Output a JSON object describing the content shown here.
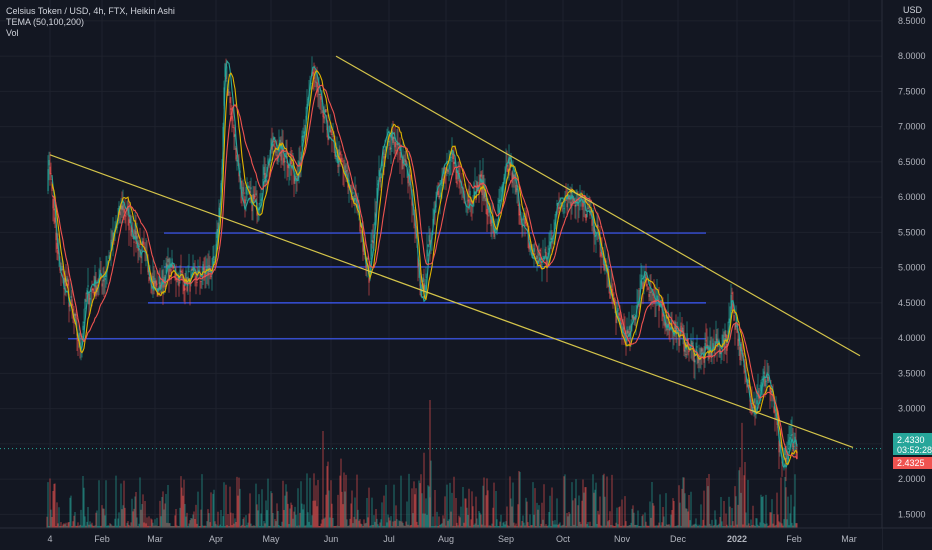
{
  "legend": {
    "symbol": "Celsius Token / USD, 4h, FTX, Heikin Ashi",
    "indicator": "TEMA (50,100,200)",
    "volume": "Vol"
  },
  "currency_label": "USD",
  "chart_data": {
    "type": "candlestick",
    "price_axis": {
      "range": [
        1.25,
        8.55
      ],
      "ticks": [
        "1.5000",
        "2.0000",
        "2.5000",
        "3.0000",
        "3.5000",
        "4.0000",
        "4.5000",
        "5.0000",
        "5.5000",
        "6.0000",
        "6.5000",
        "7.0000",
        "7.5000",
        "8.0000",
        "8.5000"
      ]
    },
    "time_axis": {
      "labels": [
        "4",
        "Feb",
        "Mar",
        "Apr",
        "May",
        "Jun",
        "Jul",
        "Aug",
        "Sep",
        "Oct",
        "Nov",
        "Dec",
        "2022",
        "Feb",
        "Mar"
      ],
      "bold_label": "2022"
    },
    "price_path": [
      [
        0,
        5.9
      ],
      [
        2,
        6.6
      ],
      [
        10,
        5.2
      ],
      [
        20,
        4.7
      ],
      [
        28,
        4.2
      ],
      [
        33,
        3.9
      ],
      [
        40,
        4.6
      ],
      [
        58,
        4.9
      ],
      [
        75,
        5.9
      ],
      [
        90,
        5.4
      ],
      [
        110,
        4.7
      ],
      [
        122,
        5.0
      ],
      [
        140,
        4.8
      ],
      [
        168,
        5.0
      ],
      [
        175,
        6.4
      ],
      [
        178,
        7.9
      ],
      [
        185,
        7.1
      ],
      [
        195,
        6.1
      ],
      [
        210,
        5.9
      ],
      [
        225,
        6.7
      ],
      [
        240,
        6.6
      ],
      [
        248,
        6.3
      ],
      [
        258,
        6.9
      ],
      [
        265,
        7.8
      ],
      [
        275,
        7.2
      ],
      [
        290,
        6.6
      ],
      [
        310,
        5.9
      ],
      [
        322,
        4.9
      ],
      [
        332,
        6.3
      ],
      [
        345,
        6.9
      ],
      [
        362,
        6.3
      ],
      [
        375,
        4.6
      ],
      [
        390,
        6.1
      ],
      [
        405,
        6.5
      ],
      [
        420,
        6.0
      ],
      [
        435,
        6.2
      ],
      [
        447,
        5.5
      ],
      [
        462,
        6.5
      ],
      [
        472,
        5.9
      ],
      [
        485,
        5.2
      ],
      [
        500,
        5.1
      ],
      [
        508,
        5.7
      ],
      [
        515,
        6.0
      ],
      [
        530,
        6.0
      ],
      [
        548,
        5.6
      ],
      [
        560,
        4.9
      ],
      [
        572,
        4.2
      ],
      [
        582,
        4.0
      ],
      [
        597,
        4.9
      ],
      [
        612,
        4.4
      ],
      [
        625,
        4.2
      ],
      [
        640,
        3.9
      ],
      [
        655,
        3.75
      ],
      [
        670,
        3.9
      ],
      [
        680,
        3.95
      ],
      [
        684,
        4.6
      ],
      [
        690,
        4.1
      ],
      [
        698,
        3.45
      ],
      [
        708,
        3.1
      ],
      [
        720,
        3.5
      ],
      [
        728,
        2.9
      ],
      [
        735,
        2.15
      ],
      [
        745,
        2.6
      ],
      [
        750,
        2.45
      ]
    ],
    "ema_fast_color": "#26a69a",
    "ema_mid_color": "#e0b400",
    "ema_slow_color": "#ef5350",
    "volume_colors": {
      "up": "#26a69a",
      "down": "#ef5350"
    },
    "horizontal_levels": [
      {
        "price": 5.49,
        "from_date": "Mar",
        "to_date": "Dec"
      },
      {
        "price": 5.01,
        "from_date": "Mar",
        "to_date": "Dec"
      },
      {
        "price": 4.5,
        "from_date": "Feb-late",
        "to_date": "Dec"
      },
      {
        "price": 3.99,
        "from_date": "4",
        "to_date": "Dec"
      }
    ],
    "trendlines": [
      {
        "from": "start",
        "start_price": 6.6,
        "end_price": 2.45,
        "color": "#d4c44a"
      },
      {
        "from": "Jun",
        "start_price": 8.0,
        "end_price": 3.75,
        "color": "#d4c44a"
      }
    ],
    "price_tags": [
      {
        "value": "2.4330",
        "sub": "03:52:28",
        "color": "#26a69a"
      },
      {
        "value": "2.4325",
        "color": "#ef5350"
      }
    ],
    "current_price": 2.433
  }
}
